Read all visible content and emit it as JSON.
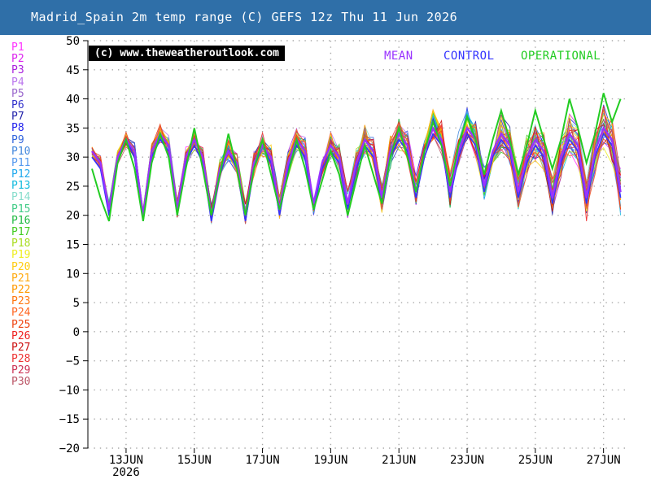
{
  "title": "Madrid_Spain 2m temp range (C) GEFS 12z Thu 11 Jun 2026",
  "copyright": "(c) www.theweatheroutlook.com",
  "key": {
    "mean": {
      "label": "MEAN",
      "color": "#9933ff"
    },
    "control": {
      "label": "CONTROL",
      "color": "#3333ff"
    },
    "operational": {
      "label": "OPERATIONAL",
      "color": "#22cc22"
    }
  },
  "members": [
    {
      "label": "P1",
      "color": "#ff33ff"
    },
    {
      "label": "P2",
      "color": "#dd22ee"
    },
    {
      "label": "P3",
      "color": "#aa22dd"
    },
    {
      "label": "P4",
      "color": "#bb77ee"
    },
    {
      "label": "P5",
      "color": "#9966cc"
    },
    {
      "label": "P6",
      "color": "#3333cc"
    },
    {
      "label": "P7",
      "color": "#2222aa"
    },
    {
      "label": "P8",
      "color": "#2222ee"
    },
    {
      "label": "P9",
      "color": "#3366dd"
    },
    {
      "label": "P10",
      "color": "#4488dd"
    },
    {
      "label": "P11",
      "color": "#5599ee"
    },
    {
      "label": "P12",
      "color": "#22aaee"
    },
    {
      "label": "P13",
      "color": "#11bbdd"
    },
    {
      "label": "P14",
      "color": "#88ddcc"
    },
    {
      "label": "P15",
      "color": "#44cc88"
    },
    {
      "label": "P16",
      "color": "#22bb44"
    },
    {
      "label": "P17",
      "color": "#44cc22"
    },
    {
      "label": "P18",
      "color": "#aadd22"
    },
    {
      "label": "P19",
      "color": "#eeee22"
    },
    {
      "label": "P20",
      "color": "#ffcc11"
    },
    {
      "label": "P21",
      "color": "#ffaa11"
    },
    {
      "label": "P22",
      "color": "#ff9900"
    },
    {
      "label": "P23",
      "color": "#ff7711"
    },
    {
      "label": "P24",
      "color": "#ff6622"
    },
    {
      "label": "P25",
      "color": "#ee4411"
    },
    {
      "label": "P26",
      "color": "#ee2222"
    },
    {
      "label": "P27",
      "color": "#cc1111"
    },
    {
      "label": "P28",
      "color": "#ee3333"
    },
    {
      "label": "P29",
      "color": "#cc3355"
    },
    {
      "label": "P30",
      "color": "#bb5566"
    }
  ],
  "chart_data": {
    "type": "line",
    "title": "Madrid_Spain 2m temp range (C) GEFS 12z Thu 11 Jun 2026",
    "ylim": [
      -20,
      50
    ],
    "yticks": [
      50,
      45,
      40,
      35,
      30,
      25,
      20,
      15,
      10,
      5,
      0,
      -5,
      -10,
      -15,
      -20
    ],
    "x_unit": "days from 12 Jun 2026 00Z",
    "xlim": [
      -0.12,
      15.7
    ],
    "xticks": [
      {
        "x": 1,
        "label": "13JUN",
        "sublabel": "2026"
      },
      {
        "x": 3,
        "label": "15JUN"
      },
      {
        "x": 5,
        "label": "17JUN"
      },
      {
        "x": 7,
        "label": "19JUN"
      },
      {
        "x": 9,
        "label": "21JUN"
      },
      {
        "x": 11,
        "label": "23JUN"
      },
      {
        "x": 13,
        "label": "25JUN"
      },
      {
        "x": 15,
        "label": "27JUN"
      }
    ],
    "grid": true,
    "legend": "left",
    "series": [
      {
        "name": "MEAN",
        "x": [
          0,
          0.25,
          0.5,
          0.75,
          1,
          1.25,
          1.5,
          1.75,
          2,
          2.25,
          2.5,
          2.75,
          3,
          3.25,
          3.5,
          3.75,
          4,
          4.25,
          4.5,
          4.75,
          5,
          5.25,
          5.5,
          5.75,
          6,
          6.25,
          6.5,
          6.75,
          7,
          7.25,
          7.5,
          7.75,
          8,
          8.25,
          8.5,
          8.75,
          9,
          9.25,
          9.5,
          9.75,
          10,
          10.25,
          10.5,
          10.75,
          11,
          11.25,
          11.5,
          11.75,
          12,
          12.25,
          12.5,
          12.75,
          13,
          13.25,
          13.5,
          13.75,
          14,
          14.25,
          14.5,
          14.75,
          15,
          15.25,
          15.5
        ],
        "values": [
          31,
          29,
          21,
          30,
          33,
          31,
          20,
          31,
          34,
          32,
          21,
          30,
          33,
          30,
          20,
          28,
          31,
          29,
          20,
          29,
          32,
          30,
          21,
          29,
          33,
          31,
          22,
          29,
          32,
          30,
          22,
          29,
          33,
          31,
          23,
          31,
          34,
          32,
          24,
          31,
          35,
          33,
          24,
          31,
          35,
          33,
          25,
          31,
          34,
          32,
          24,
          30,
          33,
          31,
          23,
          30,
          34,
          32,
          23,
          31,
          35,
          33,
          24
        ]
      },
      {
        "name": "CONTROL",
        "x": [
          0,
          0.25,
          0.5,
          0.75,
          1,
          1.25,
          1.5,
          1.75,
          2,
          2.25,
          2.5,
          2.75,
          3,
          3.25,
          3.5,
          3.75,
          4,
          4.25,
          4.5,
          4.75,
          5,
          5.25,
          5.5,
          5.75,
          6,
          6.25,
          6.5,
          6.75,
          7,
          7.25,
          7.5,
          7.75,
          8,
          8.25,
          8.5,
          8.75,
          9,
          9.25,
          9.5,
          9.75,
          10,
          10.25,
          10.5,
          10.75,
          11,
          11.25,
          11.5,
          11.75,
          12,
          12.25,
          12.5,
          12.75,
          13,
          13.25,
          13.5,
          13.75,
          14,
          14.25,
          14.5,
          14.75,
          15,
          15.25,
          15.5
        ],
        "values": [
          30,
          28,
          20,
          30,
          33,
          30,
          19,
          30,
          33,
          31,
          20,
          29,
          32,
          29,
          19,
          27,
          31,
          28,
          19,
          28,
          32,
          29,
          20,
          28,
          32,
          30,
          21,
          28,
          31,
          29,
          21,
          28,
          32,
          30,
          22,
          30,
          33,
          31,
          23,
          30,
          34,
          32,
          23,
          30,
          34,
          32,
          24,
          30,
          33,
          31,
          23,
          29,
          32,
          30,
          22,
          29,
          33,
          31,
          22,
          30,
          34,
          32,
          23
        ]
      },
      {
        "name": "OPERATIONAL",
        "x": [
          0,
          0.25,
          0.5,
          0.75,
          1,
          1.25,
          1.5,
          1.75,
          2,
          2.25,
          2.5,
          2.75,
          3,
          3.25,
          3.5,
          3.75,
          4,
          4.25,
          4.5,
          4.75,
          5,
          5.25,
          5.5,
          5.75,
          6,
          6.25,
          6.5,
          6.75,
          7,
          7.25,
          7.5,
          7.75,
          8,
          8.25,
          8.5,
          8.75,
          9,
          9.25,
          9.5,
          9.75,
          10,
          10.25,
          10.5,
          10.75,
          11,
          11.25,
          11.5,
          11.75,
          12,
          12.25,
          12.5,
          12.75,
          13,
          13.25,
          13.5,
          13.75,
          14,
          14.25,
          14.5,
          14.75,
          15,
          15.25,
          15.5
        ],
        "values": [
          28,
          23,
          19,
          29,
          33,
          28,
          19,
          29,
          34,
          30,
          20,
          28,
          35,
          28,
          20,
          27,
          34,
          28,
          20,
          28,
          33,
          27,
          21,
          27,
          33,
          28,
          21,
          26,
          31,
          27,
          20,
          26,
          32,
          27,
          22,
          30,
          35,
          30,
          24,
          31,
          36,
          32,
          25,
          32,
          37,
          33,
          27,
          33,
          38,
          33,
          27,
          32,
          38,
          33,
          28,
          33,
          40,
          35,
          29,
          34,
          41,
          36,
          40
        ]
      }
    ]
  }
}
